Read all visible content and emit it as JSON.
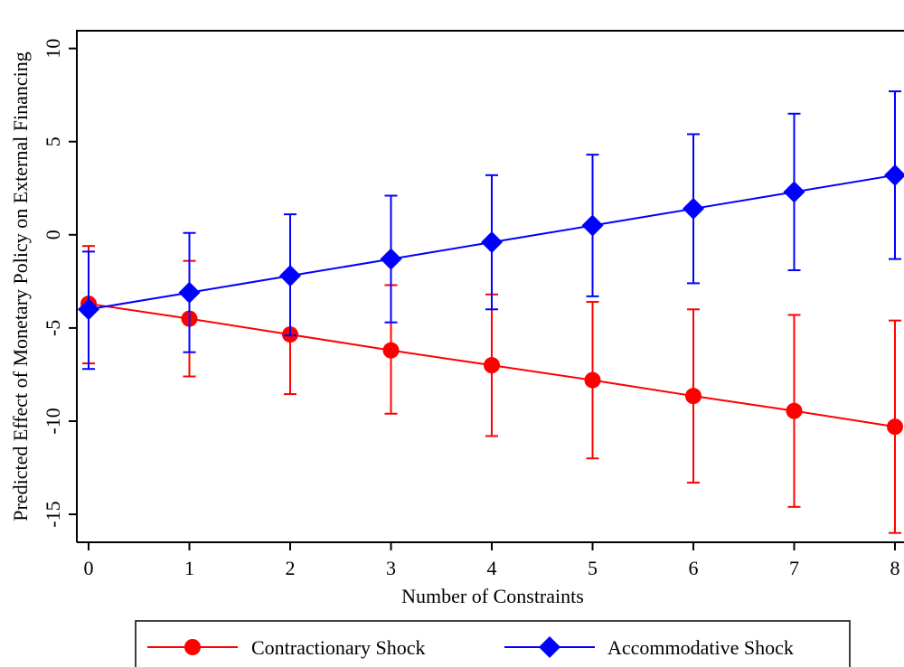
{
  "chart_data": {
    "type": "line",
    "title": "",
    "xlabel": "Number of Constraints",
    "ylabel": "Predicted Effect of Monetary Policy on External Financing",
    "x": [
      0,
      1,
      2,
      3,
      4,
      5,
      6,
      7,
      8
    ],
    "xlim": [
      0,
      8
    ],
    "ylim": [
      -16.5,
      11
    ],
    "xticks": [
      0,
      1,
      2,
      3,
      4,
      5,
      6,
      7,
      8
    ],
    "yticks": [
      -15,
      -10,
      -5,
      0,
      5,
      10
    ],
    "grid": false,
    "legend_position": "bottom",
    "series": [
      {
        "name": "Contractionary Shock",
        "color": "#ff0000",
        "marker": "circle",
        "values": [
          -3.7,
          -4.5,
          -5.35,
          -6.2,
          -7.0,
          -7.8,
          -8.65,
          -9.45,
          -10.3
        ],
        "ci_low": [
          -6.9,
          -7.6,
          -8.55,
          -9.6,
          -10.8,
          -12.0,
          -13.3,
          -14.6,
          -16.0
        ],
        "ci_high": [
          -0.6,
          -1.4,
          -2.2,
          -2.7,
          -3.2,
          -3.6,
          -4.0,
          -4.3,
          -4.6
        ]
      },
      {
        "name": "Accommodative Shock",
        "color": "#0000ff",
        "marker": "diamond",
        "values": [
          -4.0,
          -3.1,
          -2.2,
          -1.3,
          -0.4,
          0.5,
          1.4,
          2.3,
          3.2
        ],
        "ci_low": [
          -7.2,
          -6.3,
          -5.4,
          -4.7,
          -4.0,
          -3.3,
          -2.6,
          -1.9,
          -1.3
        ],
        "ci_high": [
          -0.9,
          0.1,
          1.1,
          2.1,
          3.2,
          4.3,
          5.4,
          6.5,
          7.7
        ]
      }
    ]
  }
}
